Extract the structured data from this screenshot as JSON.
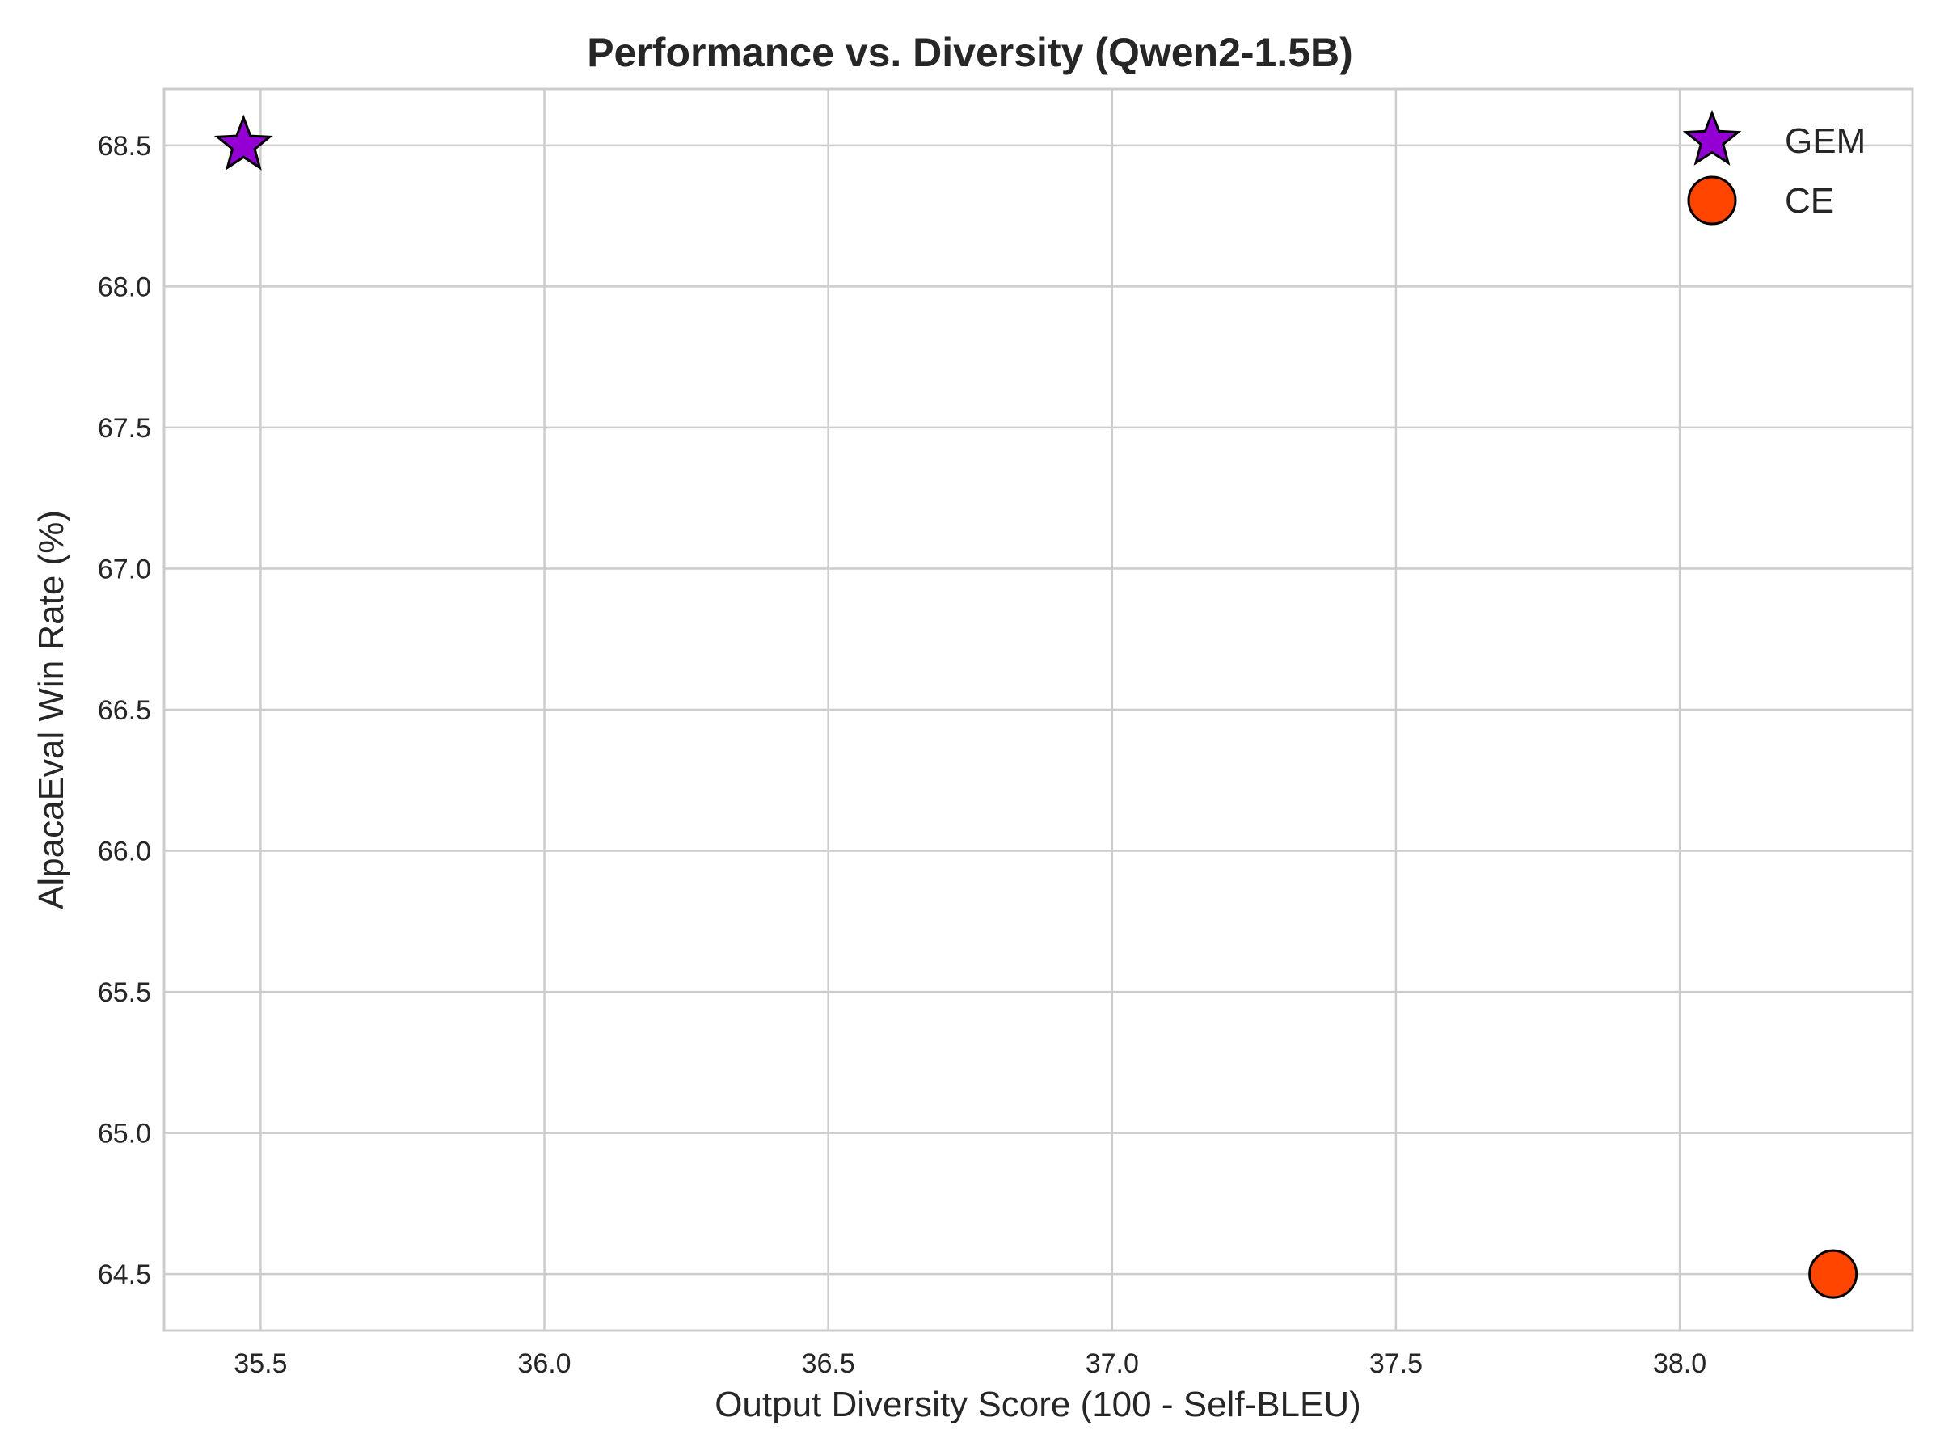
{
  "chart_data": {
    "type": "scatter",
    "title": "Performance vs. Diversity (Qwen2-1.5B)",
    "xlabel": "Output Diversity Score (100 - Self-BLEU)",
    "ylabel": "AlpacaEval Win Rate (%)",
    "xlim": [
      35.33,
      38.41
    ],
    "ylim": [
      64.3,
      68.7
    ],
    "xticks": [
      "35.5",
      "36.0",
      "36.5",
      "37.0",
      "37.5",
      "38.0"
    ],
    "yticks": [
      "64.5",
      "65.0",
      "65.5",
      "66.0",
      "66.5",
      "67.0",
      "67.5",
      "68.0",
      "68.5"
    ],
    "grid": true,
    "legend_position": "top-right",
    "series": [
      {
        "name": "GEM",
        "marker": "star",
        "color": "#9400d3",
        "points": [
          {
            "x": 35.47,
            "y": 68.5
          }
        ]
      },
      {
        "name": "CE",
        "marker": "circle",
        "color": "#ff4500",
        "points": [
          {
            "x": 38.27,
            "y": 64.5
          }
        ]
      }
    ]
  }
}
